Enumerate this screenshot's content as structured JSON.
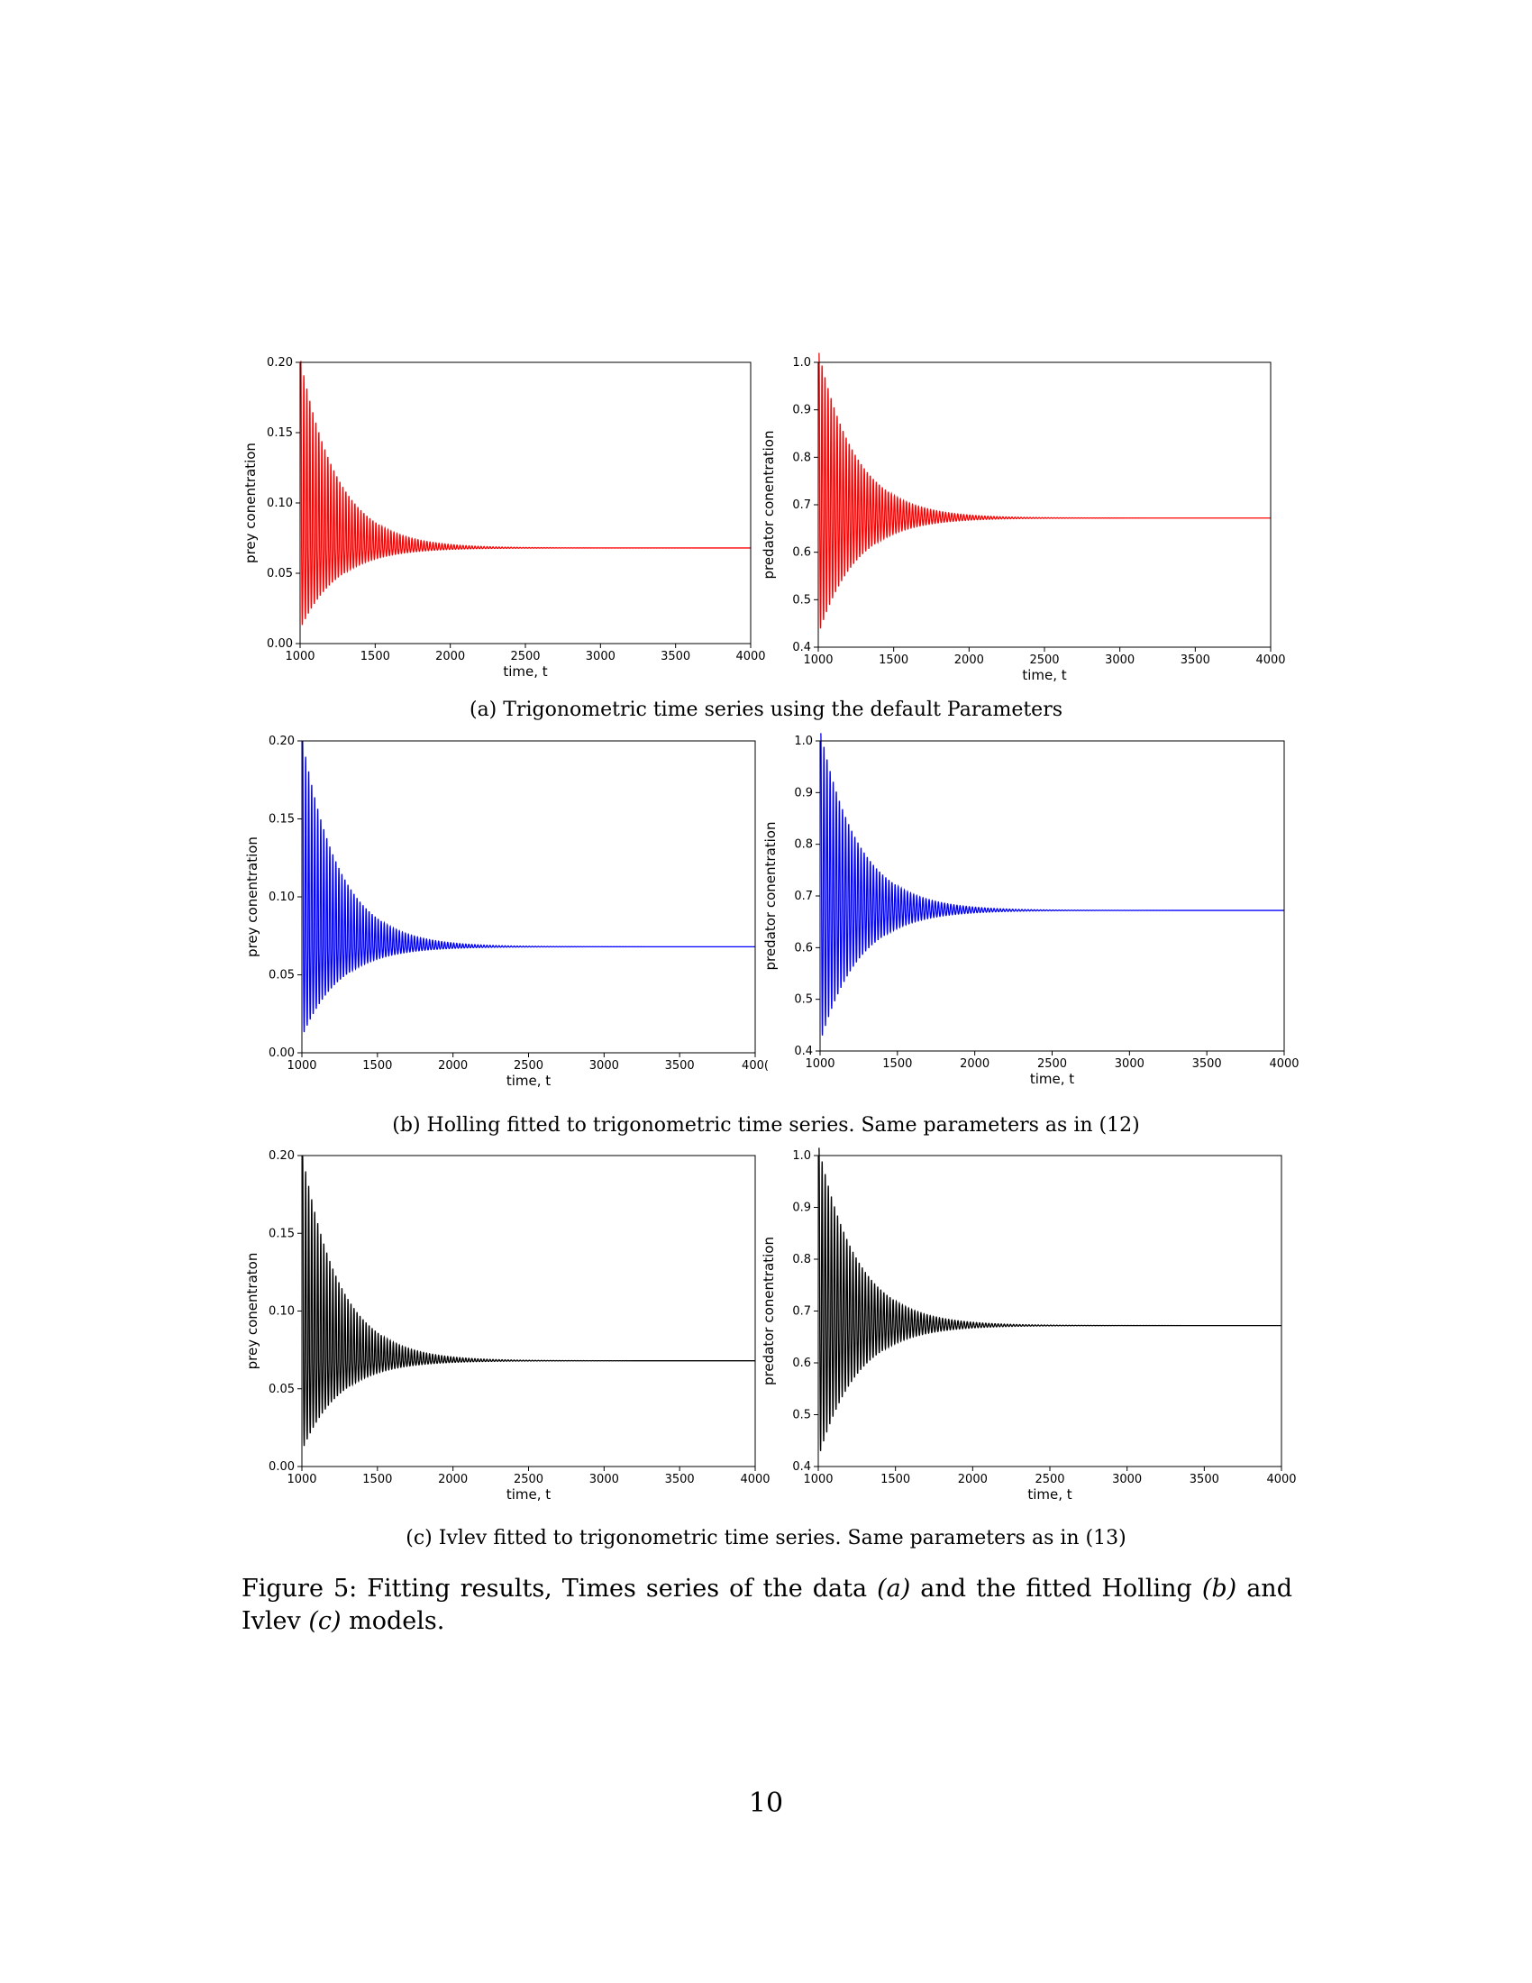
{
  "subcaptions": {
    "a": "(a) Trigonometric time series using the default Parameters",
    "b": "(b) Holling fitted to trigonometric time series. Same parameters as in (12)",
    "c": "(c) Ivlev fitted to trigonometric time series. Same parameters as in (13)"
  },
  "figure_caption": {
    "prefix": "Figure 5: Fitting results, Times series of the data ",
    "a": "(a)",
    "mid1": " and the fitted Holling ",
    "b": "(b)",
    "mid2": " and Ivlev ",
    "c": "(c)",
    "suffix": " models."
  },
  "page_number": "10",
  "chart_data": [
    {
      "id": "a-prey",
      "type": "line",
      "xlabel": "time, t",
      "ylabel": "prey conentration",
      "xlim": [
        1000,
        4000
      ],
      "ylim": [
        0.0,
        0.2
      ],
      "xticks": [
        "1000",
        "1500",
        "2000",
        "2500",
        "3000",
        "3500",
        "4000"
      ],
      "yticks": [
        "0.00",
        "0.05",
        "0.10",
        "0.15",
        "0.20"
      ],
      "color": "#ff0000",
      "series": [
        {
          "equilibrium": 0.068,
          "first_peak": 0.201,
          "first_trough": 0.011,
          "oscillation_period": 20,
          "decay_time": 250
        }
      ]
    },
    {
      "id": "a-predator",
      "type": "line",
      "xlabel": "time, t",
      "ylabel": "predator conentration",
      "xlim": [
        1000,
        4000
      ],
      "ylim": [
        0.4,
        1.0
      ],
      "xticks": [
        "1000",
        "1500",
        "2000",
        "2500",
        "3000",
        "3500",
        "4000"
      ],
      "yticks": [
        "0.4",
        "0.5",
        "0.6",
        "0.7",
        "0.8",
        "0.9",
        "1.0"
      ],
      "color": "#ff0000",
      "series": [
        {
          "equilibrium": 0.672,
          "first_peak": 1.02,
          "first_trough": 0.43,
          "oscillation_period": 20,
          "decay_time": 250
        }
      ]
    },
    {
      "id": "b-prey",
      "type": "line",
      "xlabel": "time, t",
      "ylabel": "prey conentration",
      "xlim": [
        1000,
        4000
      ],
      "ylim": [
        0.0,
        0.2
      ],
      "xticks": [
        "1000",
        "1500",
        "2000",
        "2500",
        "3000",
        "3500",
        "400("
      ],
      "yticks": [
        "0.00",
        "0.05",
        "0.10",
        "0.15",
        "0.20"
      ],
      "color": "#0000ff",
      "series": [
        {
          "equilibrium": 0.068,
          "first_peak": 0.2,
          "first_trough": 0.011,
          "oscillation_period": 20,
          "decay_time": 250
        }
      ]
    },
    {
      "id": "b-predator",
      "type": "line",
      "xlabel": "time, t",
      "ylabel": "predator conentration",
      "xlim": [
        1000,
        4000
      ],
      "ylim": [
        0.4,
        1.0
      ],
      "xticks": [
        "1000",
        "1500",
        "2000",
        "2500",
        "3000",
        "3500",
        "4000"
      ],
      "yticks": [
        "0.4",
        "0.5",
        "0.6",
        "0.7",
        "0.8",
        "0.9",
        "1.0"
      ],
      "color": "#0000ff",
      "series": [
        {
          "equilibrium": 0.672,
          "first_peak": 1.015,
          "first_trough": 0.42,
          "oscillation_period": 20,
          "decay_time": 250
        }
      ]
    },
    {
      "id": "c-prey",
      "type": "line",
      "xlabel": "time, t",
      "ylabel": "prey conentraton",
      "xlim": [
        1000,
        4000
      ],
      "ylim": [
        0.0,
        0.2
      ],
      "xticks": [
        "1000",
        "1500",
        "2000",
        "2500",
        "3000",
        "3500",
        "4000"
      ],
      "yticks": [
        "0.00",
        "0.05",
        "0.10",
        "0.15",
        "0.20"
      ],
      "color": "#000000",
      "series": [
        {
          "equilibrium": 0.068,
          "first_peak": 0.2,
          "first_trough": 0.011,
          "oscillation_period": 20,
          "decay_time": 250
        }
      ]
    },
    {
      "id": "c-predator",
      "type": "line",
      "xlabel": "time, t",
      "ylabel": "predator conentration",
      "xlim": [
        1000,
        4000
      ],
      "ylim": [
        0.4,
        1.0
      ],
      "xticks": [
        "1000",
        "1500",
        "2000",
        "2500",
        "3000",
        "3500",
        "4000"
      ],
      "yticks": [
        "0.4",
        "0.5",
        "0.6",
        "0.7",
        "0.8",
        "0.9",
        "1.0"
      ],
      "color": "#000000",
      "series": [
        {
          "equilibrium": 0.672,
          "first_peak": 1.015,
          "first_trough": 0.42,
          "oscillation_period": 20,
          "decay_time": 250
        }
      ]
    }
  ]
}
